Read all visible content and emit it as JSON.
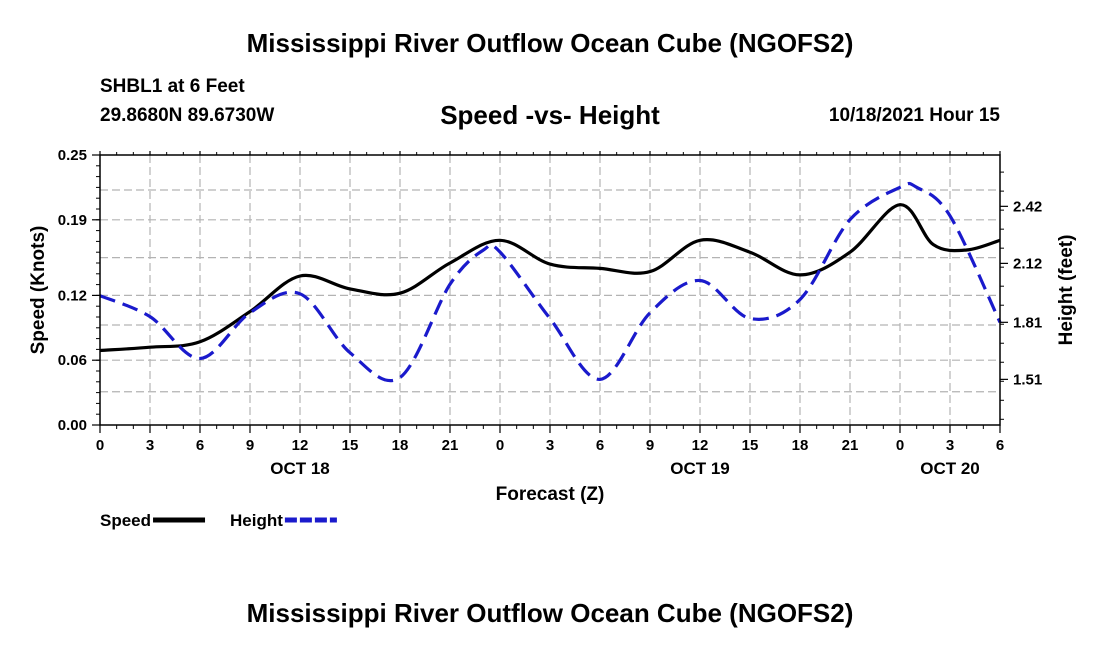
{
  "page": {
    "title": "Mississippi River Outflow Ocean Cube (NGOFS2)",
    "station": "SHBL1 at 6 Feet",
    "coords": "29.8680N  89.6730W",
    "subtitle": "Speed -vs- Height",
    "datetime": "10/18/2021 Hour 15",
    "footer_title": "Mississippi River Outflow Ocean Cube (NGOFS2)"
  },
  "colors": {
    "speed": "#000000",
    "height": "#1a1acc",
    "grid": "#b3b3b3"
  },
  "chart_data": {
    "type": "line",
    "xlabel": "Forecast (Z)",
    "ylabel": "Speed (Knots)",
    "y2label": "Height (feet)",
    "x_unit": "hours since Oct 18 00Z",
    "xlim": [
      0,
      54
    ],
    "ylim": [
      0,
      0.25
    ],
    "y2lim": [
      1.27,
      2.69
    ],
    "x_ticks": [
      0,
      3,
      6,
      9,
      12,
      15,
      18,
      21,
      24,
      27,
      30,
      33,
      36,
      39,
      42,
      45,
      48,
      51,
      54
    ],
    "x_tick_labels": [
      "0",
      "3",
      "6",
      "9",
      "12",
      "15",
      "18",
      "21",
      "0",
      "3",
      "6",
      "9",
      "12",
      "15",
      "18",
      "21",
      "0",
      "3",
      "6"
    ],
    "date_labels": [
      {
        "x": 12,
        "label": "OCT 18"
      },
      {
        "x": 36,
        "label": "OCT 19"
      },
      {
        "x": 51,
        "label": "OCT 20"
      }
    ],
    "y_ticks": [
      0,
      0.06,
      0.12,
      0.19,
      0.25
    ],
    "y_tick_labels": [
      "0.00",
      "0.06",
      "0.12",
      "0.19",
      "0.25"
    ],
    "y2_ticks": [
      1.51,
      1.81,
      2.12,
      2.42
    ],
    "y2_tick_labels": [
      "1.51",
      "1.81",
      "2.12",
      "2.42"
    ],
    "grid": true,
    "legend": [
      {
        "name": "Speed",
        "style": "solid"
      },
      {
        "name": "Height",
        "style": "dashed"
      }
    ],
    "series": [
      {
        "name": "Speed",
        "axis": "left",
        "style": "solid",
        "x": [
          0,
          3,
          6,
          9,
          12,
          15,
          18,
          21,
          24,
          27,
          30,
          33,
          36,
          39,
          42,
          45,
          48,
          50,
          52,
          54
        ],
        "values": [
          0.069,
          0.072,
          0.077,
          0.105,
          0.138,
          0.126,
          0.122,
          0.15,
          0.171,
          0.149,
          0.145,
          0.142,
          0.171,
          0.16,
          0.139,
          0.16,
          0.204,
          0.167,
          0.162,
          0.171
        ]
      },
      {
        "name": "Height",
        "axis": "right",
        "style": "dashed",
        "x": [
          0,
          3,
          6,
          9,
          12,
          15,
          18,
          21,
          23,
          24,
          27,
          30,
          33,
          36,
          39,
          42,
          45,
          48,
          49,
          51,
          54
        ],
        "values": [
          1.95,
          1.84,
          1.62,
          1.86,
          1.96,
          1.65,
          1.52,
          2.01,
          2.19,
          2.18,
          1.83,
          1.51,
          1.86,
          2.03,
          1.83,
          1.93,
          2.35,
          2.52,
          2.52,
          2.37,
          1.81
        ]
      }
    ]
  }
}
